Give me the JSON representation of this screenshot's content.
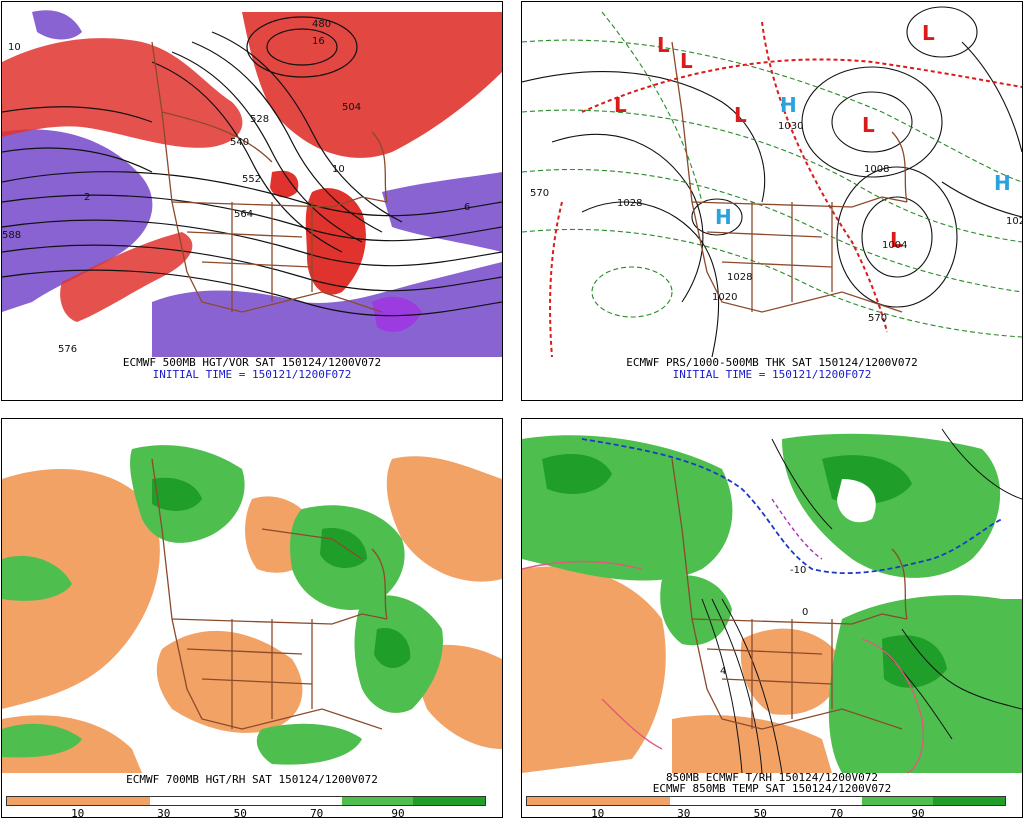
{
  "panels": [
    {
      "id": "p1",
      "title": "ECMWF 500MB HGT/VOR SAT 150124/1200V072",
      "initial_time": "INITIAL TIME = 150121/1200F072",
      "labels": [
        "10",
        "576",
        "552",
        "528",
        "564",
        "588",
        "540",
        "480",
        "504",
        "2",
        "6",
        "16",
        "10"
      ]
    },
    {
      "id": "p2",
      "title": "ECMWF PRS/1000-500MB THK SAT 150124/1200V072",
      "initial_time": "INITIAL TIME = 150121/1200F072",
      "lows": [
        "L",
        "L",
        "L",
        "L",
        "L",
        "L",
        "L"
      ],
      "highs": [
        "H",
        "H",
        "H"
      ],
      "labels": [
        "1028",
        "1020",
        "1028",
        "1008",
        "1004",
        "1030",
        "570",
        "570",
        "102"
      ]
    },
    {
      "id": "p3",
      "title": "ECMWF 700MB HGT/RH SAT 150124/1200V072",
      "colorbar_ticks": [
        "10",
        "30",
        "50",
        "70",
        "90"
      ]
    },
    {
      "id": "p4",
      "title_line1": "850MB ECMWF T/RH 150124/1200V072",
      "title_line2": "ECMWF 850MB TEMP SAT 150124/1200V072",
      "colorbar_ticks": [
        "10",
        "30",
        "50",
        "70",
        "90"
      ],
      "labels": [
        "0",
        "-10",
        "4"
      ]
    }
  ],
  "colors": {
    "vorticity_red": "#e0332e",
    "vorticity_purple": "#8a63d2",
    "rh_dry": "#f2a265",
    "rh_moist_light": "#4ebf4e",
    "rh_moist_dark": "#1f9e2a",
    "borders": "#8b4a2b",
    "thickness_red": "#dd1a1a",
    "thickness_green": "#2a8a2a",
    "low_marker": "#dd1a1a",
    "high_marker": "#2aa2dd"
  }
}
